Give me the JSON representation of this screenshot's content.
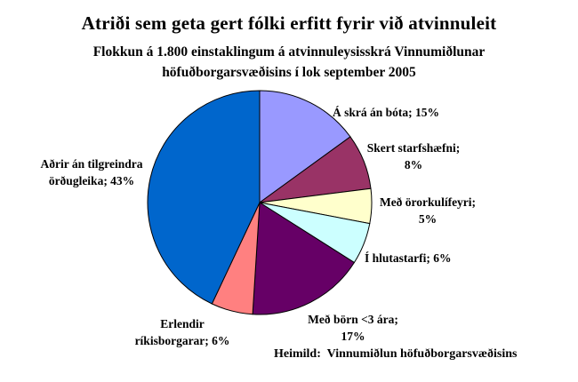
{
  "page": {
    "background_color": "#FFFFFF"
  },
  "chart_data": {
    "type": "pie",
    "title": "Atriði sem geta gert fólki erfitt fyrir við atvinnuleit",
    "subtitle_line1": "Flokkun á 1.800 einstaklingum á atvinnuleysisskrá Vinnumiðlunar",
    "subtitle_line2": "höfuðborgarsvæðisins í lok september 2005",
    "categories": [
      "Á skrá án bóta",
      "Skert starfshæfni",
      "Með örorkulífeyri",
      "Í hlutastarfi",
      "Með börn <3 ára",
      "Erlendir ríkisborgarar",
      "Aðrir án tilgreindra örðugleika"
    ],
    "values": [
      15,
      8,
      5,
      6,
      17,
      6,
      43
    ],
    "unit": "%",
    "start_angle_deg": 0,
    "direction": "clockwise",
    "legend": "none",
    "outline_color": "#000000",
    "slices": [
      {
        "category": "Á skrá án bóta",
        "value": 15,
        "color": "#9999FF",
        "line1": "Á skrá án bóta; 15%",
        "line2": ""
      },
      {
        "category": "Skert starfshæfni",
        "value": 8,
        "color": "#993366",
        "line1": "Skert starfshæfni;",
        "line2": "8%"
      },
      {
        "category": "Með örorkulífeyri",
        "value": 5,
        "color": "#FFFFCC",
        "line1": "Með örorkulífeyri;",
        "line2": "5%"
      },
      {
        "category": "Í hlutastarfi",
        "value": 6,
        "color": "#CCFFFF",
        "line1": "Í hlutastarfi; 6%",
        "line2": ""
      },
      {
        "category": "Með börn <3 ára",
        "value": 17,
        "color": "#660066",
        "line1": "Með börn <3 ára;",
        "line2": "17%"
      },
      {
        "category": "Erlendir ríkisborgarar",
        "value": 6,
        "color": "#FF8080",
        "line1": "Erlendir",
        "line2": "ríkisborgarar; 6%"
      },
      {
        "category": "Aðrir án tilgreindra örðugleika",
        "value": 43,
        "color": "#0066CC",
        "line1": "Aðrir án tilgreindra",
        "line2": "örðugleika; 43%"
      }
    ],
    "source": "Heimild:  Vinnumiðlun höfuðborgarsvæðisins"
  }
}
